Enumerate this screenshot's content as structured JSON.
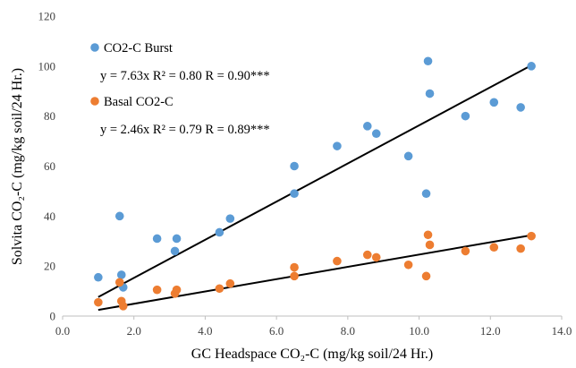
{
  "chart_data": {
    "type": "scatter",
    "xlabel": "GC Headspace CO₂-C (mg/kg soil/24 Hr.)",
    "ylabel": "Solvita CO₂-C (mg/kg soil/24 Hr.)",
    "xlim": [
      0,
      14
    ],
    "ylim": [
      0,
      120
    ],
    "x_ticks": [
      "0.0",
      "2.0",
      "4.0",
      "6.0",
      "8.0",
      "10.0",
      "12.0",
      "14.0"
    ],
    "y_ticks": [
      "0",
      "20",
      "40",
      "60",
      "80",
      "100",
      "120"
    ],
    "grid": false,
    "legend_position": "top-left",
    "series": [
      {
        "name": "CO2-C Burst",
        "color": "#5b9bd5",
        "equation": "y = 7.63x  R² = 0.80  R = 0.90***",
        "trendline": {
          "slope": 7.63,
          "x_range": [
            1.0,
            13.2
          ]
        },
        "x": [
          1.0,
          1.6,
          1.65,
          1.7,
          2.65,
          3.15,
          3.2,
          4.4,
          4.7,
          6.5,
          6.5,
          7.7,
          8.55,
          8.8,
          9.7,
          10.2,
          10.25,
          10.3,
          11.3,
          12.1,
          12.85,
          13.15
        ],
        "y": [
          15.5,
          40,
          16.5,
          11.5,
          31,
          26,
          31,
          33.5,
          39,
          49,
          60,
          68,
          76,
          73,
          64,
          49,
          102,
          89,
          80,
          85.5,
          83.5,
          100
        ]
      },
      {
        "name": "Basal CO2-C",
        "color": "#ed7d31",
        "equation": "y = 2.46x  R² = 0.79  R = 0.89***",
        "trendline": {
          "slope": 2.46,
          "x_range": [
            1.0,
            13.2
          ]
        },
        "x": [
          1.0,
          1.6,
          1.65,
          1.7,
          2.65,
          3.15,
          3.2,
          4.4,
          4.7,
          6.5,
          6.5,
          7.7,
          8.55,
          8.8,
          9.7,
          10.2,
          10.25,
          10.3,
          11.3,
          12.1,
          12.85,
          13.15
        ],
        "y": [
          5.5,
          13.5,
          6,
          4,
          10.5,
          9,
          10.5,
          11,
          13,
          16,
          19.5,
          22,
          24.5,
          23.5,
          20.5,
          16,
          32.5,
          28.5,
          26,
          27.5,
          27,
          32
        ]
      }
    ]
  }
}
